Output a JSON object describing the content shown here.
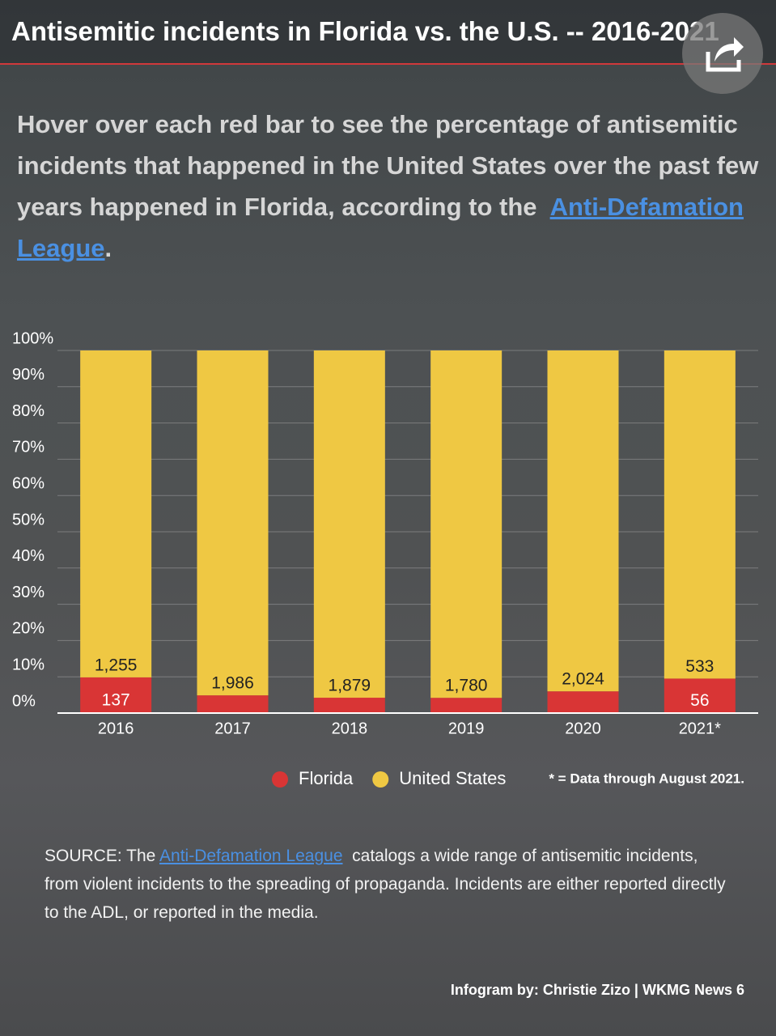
{
  "chart_data": {
    "type": "bar",
    "stack": "percent",
    "title": "Antisemitic incidents in Florida vs. the U.S. -- 2016-2021",
    "subtitle": "Hover over each red bar to see the percentage of antisemitic incidents that happened in the United States over the past few years happened in Florida, according to the",
    "subtitle_link": "Anti-Defamation League",
    "subtitle_end": ".",
    "categories": [
      "2016",
      "2017",
      "2018",
      "2019",
      "2020",
      "2021*"
    ],
    "series": [
      {
        "name": "Florida",
        "color": "#d93535",
        "values": [
          137,
          102,
          83,
          78,
          129,
          56
        ],
        "value_labels": [
          "137",
          null,
          null,
          null,
          null,
          "56"
        ]
      },
      {
        "name": "United States",
        "color": "#efc843",
        "values": [
          1255,
          1986,
          1879,
          1780,
          2024,
          533
        ],
        "value_labels": [
          "1,255",
          "1,986",
          "1,879",
          "1,780",
          "2,024",
          "533"
        ]
      }
    ],
    "ylim": [
      0,
      100
    ],
    "yticks": [
      {
        "value": 0,
        "label": "0%"
      },
      {
        "value": 10,
        "label": "10%"
      },
      {
        "value": 20,
        "label": "20%"
      },
      {
        "value": 30,
        "label": "30%"
      },
      {
        "value": 40,
        "label": "40%"
      },
      {
        "value": 50,
        "label": "50%"
      },
      {
        "value": 60,
        "label": "60%"
      },
      {
        "value": 70,
        "label": "70%"
      },
      {
        "value": 80,
        "label": "80%"
      },
      {
        "value": 90,
        "label": "90%"
      },
      {
        "value": 100,
        "label": "100%"
      }
    ],
    "grid": true,
    "footnote": "* =  Data through August 2021.",
    "source_start": "SOURCE: The",
    "source_link": "Anti-Defamation League",
    "source_rest": "catalogs a wide range of antisemitic incidents, from  violent incidents to the spreading of propaganda. Incidents are either reported directly to the ADL, or reported in the media.",
    "credit": "Infogram by: Christie Zizo | WKMG News 6"
  }
}
